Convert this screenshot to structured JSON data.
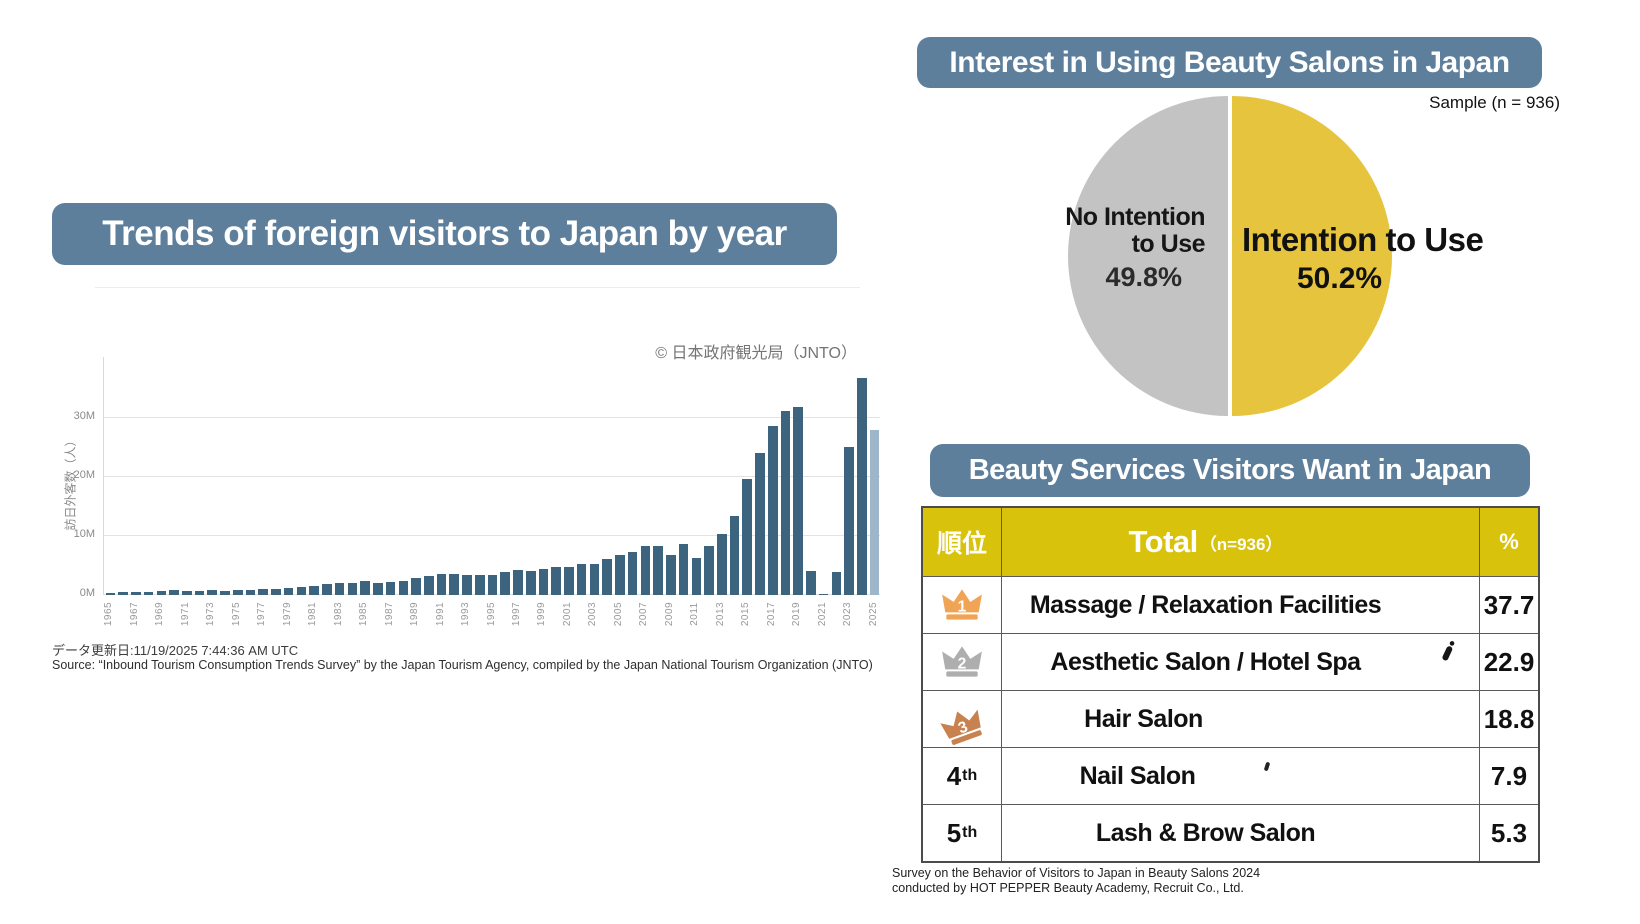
{
  "left_chart": {
    "title": "Trends of foreign visitors to Japan by year",
    "credit": "© 日本政府観光局（JNTO）",
    "updated": "データ更新日:11/19/2025 7:44:36 AM UTC",
    "source": "Source: “Inbound Tourism Consumption Trends Survey” by the Japan Tourism Agency, compiled by the Japan National Tourism Organization (JNTO)"
  },
  "pie_section": {
    "title": "Interest in Using Beauty Salons in Japan",
    "sample_label": "Sample (n = 936)",
    "no_line1": "No Intention",
    "no_line2": "to Use",
    "no_value": "49.8%",
    "yes_label": "Intention to Use",
    "yes_value": "50.2%"
  },
  "table_section": {
    "title": "Beauty Services Visitors Want in Japan",
    "header_rank": "順位",
    "header_total": "Total",
    "header_total_n": "（n=936）",
    "header_pct": "%",
    "note1": "Survey on the Behavior of Visitors to Japan in Beauty Salons 2024",
    "note2": "conducted by HOT PEPPER Beauty Academy, Recruit Co., Ltd."
  },
  "colors": {
    "banner": "#5d7f9c",
    "bar": "#3d647f",
    "bar_latest": "#9db7c8",
    "pie_yes": "#e6c43e",
    "pie_no": "#c3c3c3",
    "table_header": "#d8c20b",
    "crown_gold": "#f0a556",
    "crown_silver": "#aeaeae",
    "crown_bronze": "#c8824f"
  },
  "chart_data": [
    {
      "type": "bar",
      "title": "Trends of foreign visitors to Japan by year",
      "ylabel": "訪日外客数（人）",
      "yticks": [
        "0M",
        "10M",
        "20M",
        "30M"
      ],
      "ylim_millions": [
        0,
        37
      ],
      "unit": "millions of visitors",
      "xtick_step": 2,
      "years": [
        1965,
        1966,
        1967,
        1968,
        1969,
        1970,
        1971,
        1972,
        1973,
        1974,
        1975,
        1976,
        1977,
        1978,
        1979,
        1980,
        1981,
        1982,
        1983,
        1984,
        1985,
        1986,
        1987,
        1988,
        1989,
        1990,
        1991,
        1992,
        1993,
        1994,
        1995,
        1996,
        1997,
        1998,
        1999,
        2000,
        2001,
        2002,
        2003,
        2004,
        2005,
        2006,
        2007,
        2008,
        2009,
        2010,
        2011,
        2012,
        2013,
        2014,
        2015,
        2016,
        2017,
        2018,
        2019,
        2020,
        2021,
        2022,
        2023,
        2024,
        2025
      ],
      "values": [
        0.37,
        0.43,
        0.48,
        0.52,
        0.61,
        0.85,
        0.66,
        0.72,
        0.78,
        0.76,
        0.81,
        0.91,
        1.03,
        1.04,
        1.11,
        1.32,
        1.58,
        1.79,
        1.97,
        2.11,
        2.33,
        2.06,
        2.16,
        2.36,
        2.84,
        3.24,
        3.53,
        3.58,
        3.41,
        3.47,
        3.35,
        3.84,
        4.22,
        4.11,
        4.44,
        4.76,
        4.77,
        5.24,
        5.21,
        6.14,
        6.73,
        7.33,
        8.35,
        8.35,
        6.79,
        8.61,
        6.22,
        8.36,
        10.36,
        13.41,
        19.74,
        24.04,
        28.69,
        31.19,
        31.88,
        4.12,
        0.25,
        3.83,
        25.07,
        36.87,
        28.03
      ],
      "highlighted_year": 2025
    },
    {
      "type": "pie",
      "title": "Interest in Using Beauty Salons in Japan",
      "labels": [
        "Intention to Use",
        "No Intention to Use"
      ],
      "values": [
        50.2,
        49.8
      ],
      "sample_n": 936,
      "legend_position": "on-slices"
    },
    {
      "type": "table",
      "title": "Beauty Services Visitors Want in Japan",
      "columns": [
        "順位",
        "Total（n=936）",
        "%"
      ],
      "rows": [
        {
          "rank": "1",
          "rank_suffix": "",
          "rank_icon": "gold-crown",
          "service": "Massage / Relaxation Facilities",
          "pct": "37.7"
        },
        {
          "rank": "2",
          "rank_suffix": "",
          "rank_icon": "silver-crown",
          "service": "Aesthetic Salon / Hotel Spa",
          "pct": "22.9"
        },
        {
          "rank": "3",
          "rank_suffix": "",
          "rank_icon": "bronze-crown",
          "service": "Hair Salon",
          "pct": "18.8"
        },
        {
          "rank": "4",
          "rank_suffix": "th",
          "rank_icon": "",
          "service": "Nail Salon",
          "pct": "7.9"
        },
        {
          "rank": "5",
          "rank_suffix": "th",
          "rank_icon": "",
          "service": "Lash & Brow Salon",
          "pct": "5.3"
        }
      ]
    }
  ]
}
